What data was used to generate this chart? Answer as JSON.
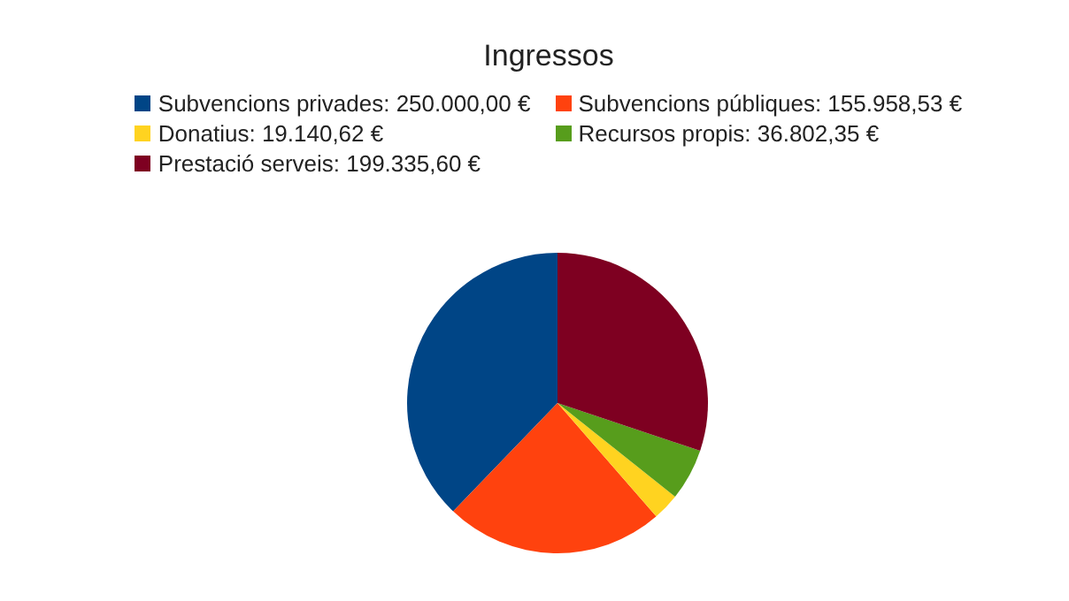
{
  "chart_data": {
    "type": "pie",
    "title": "Ingressos",
    "categories": [
      "Subvencions privades",
      "Subvencions públiques",
      "Donatius",
      "Recursos propis",
      "Prestació serveis"
    ],
    "values": [
      250000.0,
      155958.53,
      19140.62,
      36802.35,
      199335.6
    ],
    "value_labels": [
      "250.000,00 €",
      "155.958,53 €",
      "19.140,62 €",
      "36.802,35 €",
      "199.335,60 €"
    ],
    "colors": [
      "#004586",
      "#ff420e",
      "#ffd320",
      "#579d1c",
      "#7e0021"
    ],
    "legend": "top"
  }
}
